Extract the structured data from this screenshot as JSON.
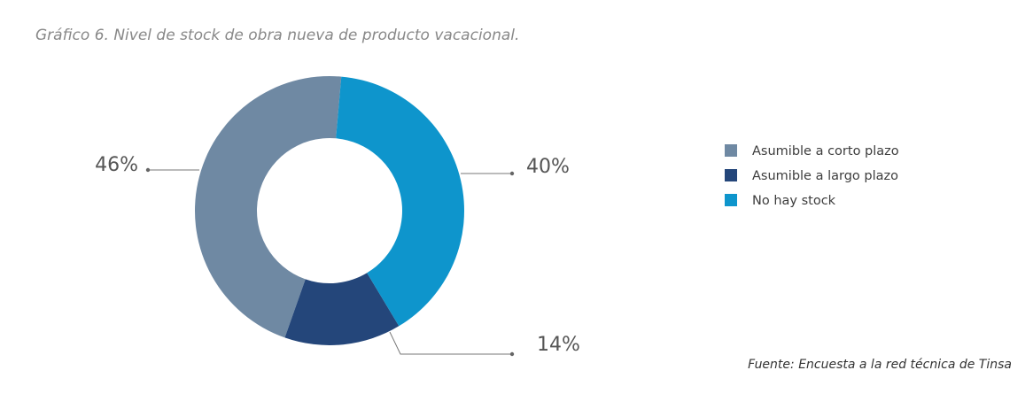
{
  "chart_data": {
    "type": "donut",
    "title": "Gráfico 6. Nivel de stock de obra nueva de producto vacacional.",
    "source": "Fuente: Encuesta a la red técnica de Tinsa",
    "categories": [
      "Asumible a corto plazo",
      "Asumible a largo plazo",
      "No hay stock"
    ],
    "values": [
      46,
      14,
      40
    ],
    "value_labels": [
      "46%",
      "14%",
      "40%"
    ],
    "colors": [
      "#6f89a3",
      "#24467a",
      "#0e95cc"
    ],
    "legend": "right"
  }
}
